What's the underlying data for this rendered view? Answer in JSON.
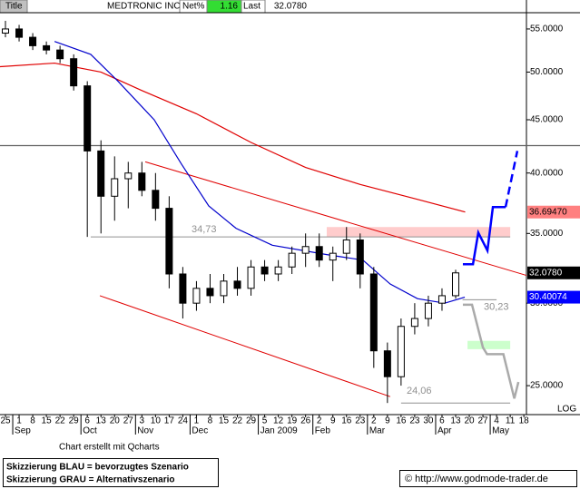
{
  "chart_data": {
    "type": "candlestick",
    "title": "MEDTRONIC INC",
    "header": {
      "tab": "Title",
      "net_label": "Net%",
      "net_value": 1.16,
      "last_label": "Last",
      "last_value": {
        "value": 32.078,
        "label": "32.0780"
      }
    },
    "log_scale": true,
    "log_label": "LOG",
    "xlim": [
      -0.4,
      38.19
    ],
    "ylim": [
      23.45,
      56.9
    ],
    "yticks": [
      {
        "value": 25,
        "label": "25.0000"
      },
      {
        "value": 30,
        "label": "30.0000"
      },
      {
        "value": 35,
        "label": "35.0000"
      },
      {
        "value": 40,
        "label": "40.0000"
      },
      {
        "value": 45,
        "label": "45.0000"
      },
      {
        "value": 50,
        "label": "50.0000"
      },
      {
        "value": 55,
        "label": "55.0000"
      }
    ],
    "xticks": [
      {
        "value": 0,
        "label": "25"
      },
      {
        "value": 1,
        "label": "1"
      },
      {
        "value": 2,
        "label": "8"
      },
      {
        "value": 3,
        "label": "15"
      },
      {
        "value": 4,
        "label": "22"
      },
      {
        "value": 5,
        "label": "29"
      },
      {
        "value": 6,
        "label": "6"
      },
      {
        "value": 7,
        "label": "13"
      },
      {
        "value": 8,
        "label": "20"
      },
      {
        "value": 9,
        "label": "27"
      },
      {
        "value": 10,
        "label": "3"
      },
      {
        "value": 11,
        "label": "10"
      },
      {
        "value": 12,
        "label": "17"
      },
      {
        "value": 13,
        "label": "24"
      },
      {
        "value": 14,
        "label": "1"
      },
      {
        "value": 15,
        "label": "8"
      },
      {
        "value": 16,
        "label": "15"
      },
      {
        "value": 17,
        "label": "22"
      },
      {
        "value": 18,
        "label": "29"
      },
      {
        "value": 19,
        "label": "5"
      },
      {
        "value": 20,
        "label": "12"
      },
      {
        "value": 21,
        "label": "19"
      },
      {
        "value": 22,
        "label": "26"
      },
      {
        "value": 23,
        "label": "2"
      },
      {
        "value": 24,
        "label": "9"
      },
      {
        "value": 25,
        "label": "16"
      },
      {
        "value": 26,
        "label": "23"
      },
      {
        "value": 27,
        "label": "2"
      },
      {
        "value": 28,
        "label": "9"
      },
      {
        "value": 29,
        "label": "16"
      },
      {
        "value": 30,
        "label": "23"
      },
      {
        "value": 31,
        "label": "30"
      },
      {
        "value": 32,
        "label": "6"
      },
      {
        "value": 33,
        "label": "13"
      },
      {
        "value": 34,
        "label": "20"
      },
      {
        "value": 35,
        "label": "27"
      },
      {
        "value": 36,
        "label": "4"
      },
      {
        "value": 37,
        "label": "11"
      },
      {
        "value": 38,
        "label": "18"
      }
    ],
    "month_labels": [
      {
        "value": 1,
        "label": "Sep"
      },
      {
        "value": 6,
        "label": "Oct"
      },
      {
        "value": 10,
        "label": "Nov"
      },
      {
        "value": 14,
        "label": "Dec"
      },
      {
        "value": 19,
        "label": "Jan 2009"
      },
      {
        "value": 23,
        "label": "Feb"
      },
      {
        "value": 27,
        "label": "Mar"
      },
      {
        "value": 32,
        "label": "Apr"
      },
      {
        "value": 36,
        "label": "May"
      }
    ],
    "candles": {
      "x": [
        0,
        1,
        2,
        3,
        4,
        5,
        6,
        7,
        8,
        9,
        10,
        11,
        12,
        13,
        14,
        15,
        16,
        17,
        18,
        19,
        20,
        21,
        22,
        23,
        24,
        25,
        26,
        27,
        28,
        29,
        30,
        31,
        32,
        33
      ],
      "open": [
        54.5,
        55,
        54,
        53,
        52.5,
        51.5,
        48.5,
        42,
        38,
        39.5,
        40,
        38.5,
        37,
        32,
        30,
        31,
        30.5,
        31.5,
        31,
        32.5,
        32,
        32.5,
        33.5,
        34,
        33,
        33.5,
        34.5,
        32,
        27,
        25.5,
        28.5,
        29,
        30,
        30.5
      ],
      "high": [
        56,
        55.5,
        54.5,
        53.5,
        53,
        52,
        49,
        43,
        41.5,
        41,
        41,
        40,
        38,
        32.5,
        31.5,
        32,
        32,
        32.5,
        33,
        33,
        33,
        34,
        35,
        35,
        34,
        35.5,
        35,
        32.5,
        27.5,
        29,
        30,
        30.5,
        31,
        32.3
      ],
      "low": [
        54,
        53.5,
        52.5,
        52,
        51,
        48,
        34.73,
        35,
        36,
        37,
        38,
        36,
        31,
        29,
        29.5,
        30,
        30,
        30.5,
        30.5,
        31.5,
        31.5,
        32,
        32.5,
        32.5,
        31.5,
        33,
        31,
        26,
        24.06,
        25,
        28,
        28.5,
        29.5,
        30.3
      ],
      "close": [
        55,
        54,
        53,
        52.5,
        51.5,
        48.5,
        42,
        38,
        39.5,
        40,
        38.5,
        37,
        32,
        30,
        31,
        30.5,
        31.5,
        31,
        32.5,
        32,
        32.5,
        33.5,
        34,
        33,
        33.5,
        34.5,
        32,
        27,
        25.5,
        28.5,
        29,
        30,
        30.5,
        32.078
      ]
    },
    "moving_averages": [
      {
        "color": "#e00000",
        "x": [
          -0.4,
          3.6,
          7,
          10,
          14,
          18,
          22,
          26,
          30,
          33.7
        ],
        "values": [
          50.6,
          51.0,
          50.0,
          48.0,
          45.6,
          42.8,
          40.5,
          39.0,
          37.8,
          36.6947
        ]
      },
      {
        "color": "#0000cc",
        "x": [
          3.6,
          6.25,
          8.25,
          10.9,
          12.9,
          14.9,
          16.9,
          19.56,
          23.55,
          26.2,
          28.2,
          30.2,
          32.2,
          33.67
        ],
        "values": [
          53.5,
          52,
          49,
          45,
          40.8,
          37.2,
          35.4,
          34.1,
          33.4,
          33.0,
          31.3,
          30.3,
          30.0,
          30.40074
        ]
      }
    ],
    "resistance": {
      "value": 42.5,
      "color": "#606060"
    },
    "zones": [
      {
        "low": 34.73,
        "high": 35.5,
        "x": [
          23.55,
          37
        ],
        "color": "#ffcccc"
      },
      {
        "low": 27.1,
        "high": 27.6,
        "x": [
          33.87,
          37
        ],
        "color": "#ccffcc"
      }
    ],
    "levels": [
      {
        "value": 34.73,
        "label": "34,73",
        "x": [
          6.25,
          37
        ]
      },
      {
        "value": 30.23,
        "label": "30,23",
        "x": [
          33.5,
          36
        ]
      },
      {
        "value": 24.06,
        "label": "24,06",
        "x": [
          29,
          37
        ]
      }
    ],
    "trend_lines": [
      {
        "color": "#e00000",
        "x": [
          10.25,
          38.19
        ],
        "values": [
          41.0,
          31.9
        ]
      },
      {
        "color": "#e00000",
        "x": [
          6.92,
          28.2
        ],
        "values": [
          30.5,
          24.4
        ]
      }
    ],
    "scenarios": [
      {
        "color": "#0000ff",
        "dashed": false,
        "x": [
          33.53,
          34.27,
          34.66,
          35.33,
          35.73,
          36.66
        ],
        "values": [
          32.7,
          32.7,
          35.06,
          33.7,
          37.1,
          37.1
        ]
      },
      {
        "color": "#0000ff",
        "dashed": true,
        "x": [
          36.66,
          37.52
        ],
        "values": [
          37.1,
          42.0
        ]
      },
      {
        "color": "#aaaaaa",
        "dashed": false,
        "x": [
          33.53,
          34.2,
          35.0,
          35.3,
          36.5,
          37.3,
          37.6
        ],
        "values": [
          29.9,
          29.9,
          27.2,
          26.8,
          26.8,
          24.3,
          25.2
        ]
      }
    ],
    "price_labels": [
      {
        "value": 36.6947,
        "label": "36.69470",
        "color": "#ff8080",
        "text_color": "#000000"
      },
      {
        "value": 32.078,
        "label": "32.0780",
        "color": "#000000",
        "text_color": "#ffffff"
      },
      {
        "value": 30.40074,
        "label": "30.40074",
        "color": "#0000ff",
        "text_color": "#ffffff"
      }
    ],
    "credit": "Chart erstellt mit Qcharts",
    "legend_lines": [
      "Skizzierung BLAU = bevorzugtes Szenario",
      "Skizzierung GRAU = Alternativszenario"
    ],
    "copyright": "© http://www.godmode-trader.de"
  }
}
